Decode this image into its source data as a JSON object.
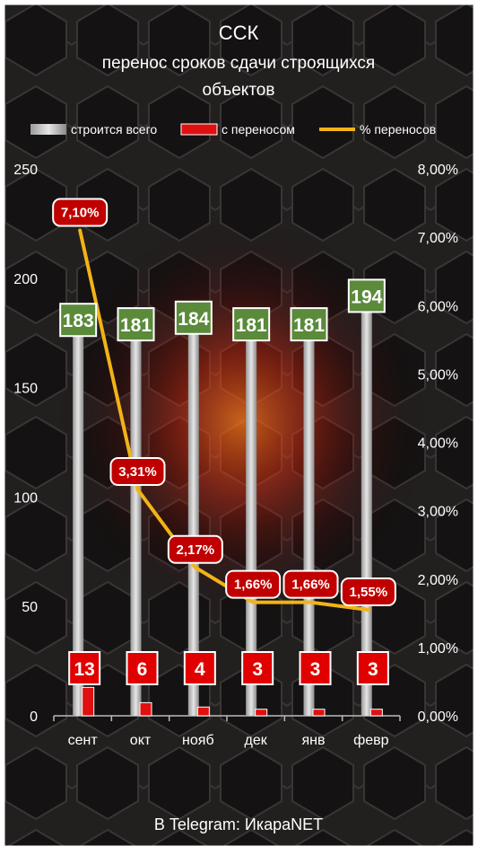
{
  "chart_data": {
    "type": "bar",
    "title": "ССК",
    "subtitle_line1": "перенос сроков сдачи строящихся",
    "subtitle_line2": "объектов",
    "categories": [
      "сент",
      "окт",
      "нояб",
      "дек",
      "янв",
      "февр"
    ],
    "series": [
      {
        "name": "строится всего",
        "type": "bar",
        "axis": "left",
        "values": [
          183,
          181,
          184,
          181,
          181,
          194
        ]
      },
      {
        "name": "с переносом",
        "type": "bar",
        "axis": "left",
        "values": [
          13,
          6,
          4,
          3,
          3,
          3
        ]
      },
      {
        "name": "% переносов",
        "type": "line",
        "axis": "right",
        "values": [
          7.1,
          3.31,
          2.17,
          1.66,
          1.66,
          1.55
        ]
      }
    ],
    "pct_labels": [
      "7,10%",
      "3,31%",
      "2,17%",
      "1,66%",
      "1,66%",
      "1,55%"
    ],
    "y_left": {
      "ylim": [
        0,
        250
      ],
      "ticks": [
        "0",
        "50",
        "100",
        "150",
        "200",
        "250"
      ]
    },
    "y_right": {
      "ylim": [
        0,
        8
      ],
      "ticks": [
        "0,00%",
        "1,00%",
        "2,00%",
        "3,00%",
        "4,00%",
        "5,00%",
        "6,00%",
        "7,00%",
        "8,00%"
      ]
    },
    "legend_position": "top",
    "grid": false
  },
  "footer": "В Telegram: ИкараNET",
  "colors": {
    "total_bar": "#c8c8c8",
    "delayed_bar": "#e01010",
    "pct_line": "#f2b317",
    "total_label_bg": "#5a8a3a",
    "delayed_label_bg": "#e00000",
    "pct_label_bg": "#c00000",
    "background": "#1e1b1b",
    "text": "#ffffff"
  }
}
